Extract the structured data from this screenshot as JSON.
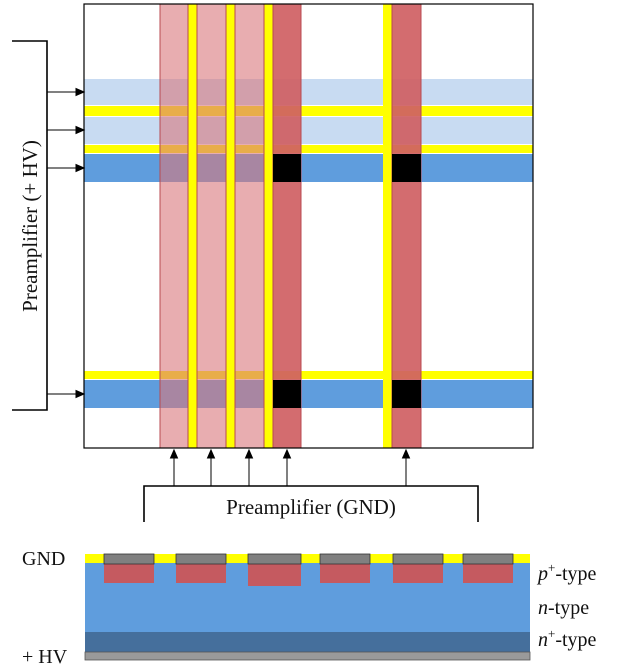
{
  "labels": {
    "preamp_hv": "Preamplifier (+ HV)",
    "preamp_gnd": "Preamplifier (GND)",
    "gnd": "GND",
    "hv": "+ HV",
    "p_type_italic": "p",
    "p_type_sup": "+",
    "p_type_rest": "-type",
    "n_type_italic": "n",
    "n_type_rest": "-type",
    "nplus_type_italic": "n",
    "nplus_type_sup": "+",
    "nplus_type_rest": "-type"
  },
  "colors": {
    "light_blue_strip": "#c8dbf2",
    "blue_strip": "#5f9ddd",
    "yellow": "#ffff00",
    "light_red_strip": "#e3a3a5",
    "red_strip": "#cf5f63",
    "pixel_black": "#000000",
    "bulk_blue": "#5f9ddd",
    "nplus_layer": "#456f9c",
    "bottom_metal": "#9a9a9a",
    "pad_gray": "#808080",
    "implant_red": "#c55a60"
  }
}
